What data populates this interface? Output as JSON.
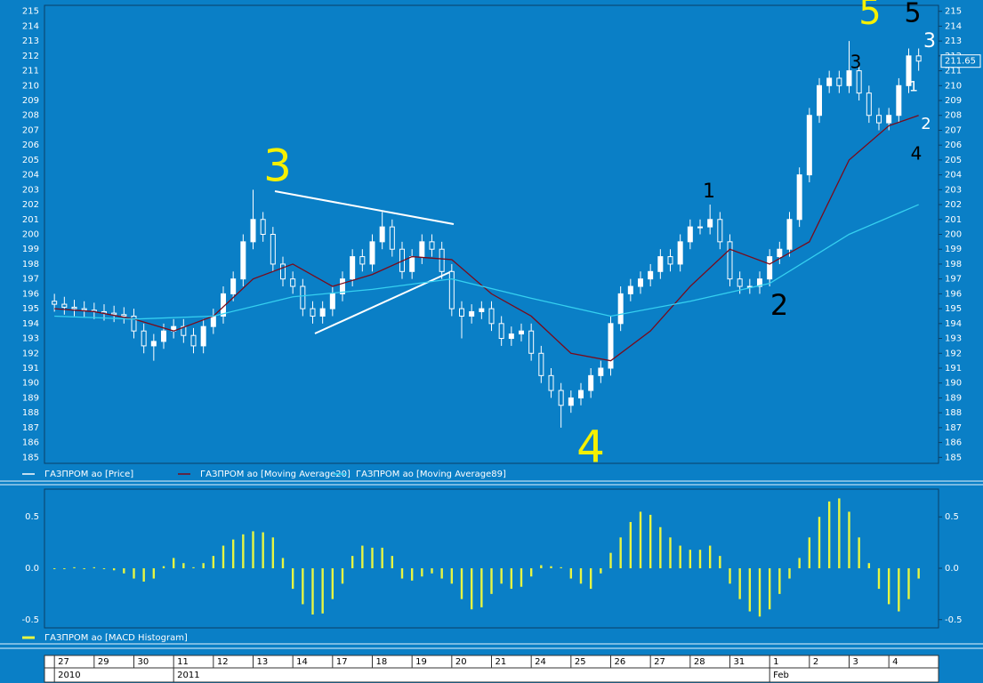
{
  "chart_data": [
    {
      "type": "candlestick",
      "open": [
        195.5,
        195.3,
        195.1,
        195,
        194.9,
        194.8,
        194.7,
        194.6,
        194.5,
        193.5,
        192.5,
        192.8,
        193.5,
        193.8,
        193.2,
        192.5,
        193.8,
        194.5,
        196,
        197,
        199.5,
        201,
        200,
        198,
        197,
        196.5,
        195,
        194.5,
        195,
        196,
        197,
        198.5,
        198,
        199.5,
        200.5,
        199,
        197.5,
        198.5,
        199.5,
        199,
        197.5,
        195,
        194.5,
        194.8,
        195,
        194,
        193,
        193.3,
        193.5,
        192,
        190.5,
        189.5,
        188.5,
        189,
        189.5,
        190.5,
        191,
        194,
        196,
        196.5,
        197,
        197.5,
        198.5,
        198,
        199.5,
        200.5,
        200.5,
        201,
        199.5,
        197,
        196.5,
        196.5,
        197,
        198.5,
        199,
        201,
        204,
        208,
        210,
        210.5,
        210,
        211,
        209.5,
        208,
        207.5,
        208,
        210,
        212
      ],
      "high": [
        196,
        195.8,
        195.6,
        195.5,
        195.4,
        195.3,
        195.2,
        195.1,
        195,
        194,
        193.3,
        194,
        194.3,
        194.3,
        193.7,
        194.3,
        195,
        196.5,
        197.5,
        200,
        203,
        201.5,
        200.5,
        198.5,
        197.5,
        197,
        195.5,
        195.5,
        196.5,
        197.5,
        199,
        199,
        200,
        201.5,
        201,
        199.5,
        199,
        200,
        200,
        199.5,
        198,
        195.5,
        195.3,
        195.5,
        195.5,
        194.5,
        193.8,
        194,
        194,
        192.5,
        191,
        190,
        189.5,
        190,
        191,
        191.5,
        194.5,
        196.5,
        197,
        197.5,
        198,
        199,
        199,
        200,
        201,
        201,
        202,
        201.5,
        200,
        197.5,
        197,
        197.5,
        199,
        199.5,
        201.5,
        204.5,
        208.5,
        210.5,
        211,
        211,
        213,
        211.5,
        210,
        208.5,
        208.5,
        210.5,
        212.5,
        212.5
      ],
      "low": [
        194.8,
        194.6,
        194.5,
        194.4,
        194.3,
        194.2,
        194.1,
        194,
        193,
        192,
        191.5,
        192.3,
        193,
        192.7,
        192,
        192,
        193.3,
        194,
        195.5,
        196.5,
        199,
        199.5,
        197.5,
        196.5,
        196,
        194.5,
        194,
        194,
        194.5,
        195.5,
        196.5,
        197.5,
        197.5,
        199,
        198.5,
        197,
        197,
        198,
        198.5,
        197,
        194.5,
        193,
        194,
        194.3,
        193.5,
        192.5,
        192.5,
        192.8,
        191.5,
        190,
        189,
        187,
        188,
        188.5,
        189,
        190,
        190.5,
        193.5,
        195.5,
        196,
        196.5,
        197,
        197.5,
        197.5,
        199,
        200,
        200,
        199,
        196.5,
        196,
        196,
        196,
        196.5,
        198,
        198.5,
        200.5,
        203.5,
        207.5,
        209.5,
        209.5,
        209.5,
        209,
        207.5,
        207,
        207,
        207.5,
        209.5,
        211
      ],
      "close": [
        195.3,
        195.1,
        195,
        194.9,
        194.8,
        194.7,
        194.6,
        194.5,
        193.5,
        192.5,
        192.8,
        193.5,
        193.8,
        193.2,
        192.5,
        193.8,
        194.5,
        196,
        197,
        199.5,
        201,
        200,
        198,
        197,
        196.5,
        195,
        194.5,
        195,
        196,
        197,
        198.5,
        198,
        199.5,
        200.5,
        199,
        197.5,
        198.5,
        199.5,
        199,
        197.5,
        195,
        194.5,
        194.8,
        195,
        194,
        193,
        193.3,
        193.5,
        192,
        190.5,
        189.5,
        188.5,
        189,
        189.5,
        190.5,
        191,
        194,
        196,
        196.5,
        197,
        197.5,
        198.5,
        198,
        199.5,
        200.5,
        200.5,
        201,
        199.5,
        197,
        196.5,
        196.5,
        197,
        198.5,
        199,
        201,
        204,
        208,
        210,
        210.5,
        210,
        211,
        209.5,
        208,
        207.5,
        208,
        210,
        212,
        211.65
      ],
      "name": "ГАЗПРОМ ao [Price]",
      "color": "#ffffff",
      "series": [
        {
          "name": "ГАЗПРОМ ao [Moving Average20]",
          "color": "#7a0a1a",
          "x": [
            0,
            4,
            8,
            12,
            16,
            20,
            24,
            28,
            32,
            36,
            40,
            44,
            48,
            52,
            56,
            60,
            64,
            68,
            72,
            76,
            80,
            84,
            87
          ],
          "values": [
            195,
            194.8,
            194.3,
            193.5,
            194.5,
            197,
            198,
            196.5,
            197.3,
            198.5,
            198.3,
            196,
            194.5,
            192,
            191.5,
            193.5,
            196.5,
            199,
            198,
            199.5,
            205,
            207.3,
            208
          ]
        },
        {
          "name": "ГАЗПРОМ ao [Moving Average89]",
          "color": "#35d0f0",
          "x": [
            0,
            8,
            16,
            24,
            32,
            40,
            48,
            56,
            64,
            72,
            80,
            87
          ],
          "values": [
            194.5,
            194.3,
            194.5,
            195.8,
            196.3,
            197,
            195.7,
            194.5,
            195.5,
            196.7,
            200,
            202
          ]
        }
      ],
      "xlim": [
        -1,
        89
      ],
      "xticks": [
        {
          "value": 0,
          "label": "27"
        },
        {
          "value": 4,
          "label": "29"
        },
        {
          "value": 8,
          "label": "30"
        },
        {
          "value": 12,
          "label": "11"
        },
        {
          "value": 16,
          "label": "12"
        },
        {
          "value": 20,
          "label": "13"
        },
        {
          "value": 24,
          "label": "14"
        },
        {
          "value": 28,
          "label": "17"
        },
        {
          "value": 32,
          "label": "18"
        },
        {
          "value": 36,
          "label": "19"
        },
        {
          "value": 40,
          "label": "20"
        },
        {
          "value": 44,
          "label": "21"
        },
        {
          "value": 48,
          "label": "24"
        },
        {
          "value": 52,
          "label": "25"
        },
        {
          "value": 56,
          "label": "26"
        },
        {
          "value": 60,
          "label": "27"
        },
        {
          "value": 64,
          "label": "28"
        },
        {
          "value": 68,
          "label": "31"
        },
        {
          "value": 72,
          "label": "1"
        },
        {
          "value": 76,
          "label": "2"
        },
        {
          "value": 80,
          "label": "3"
        },
        {
          "value": 84,
          "label": "4"
        }
      ],
      "year_ticks": [
        {
          "value": 0,
          "label": "2010"
        },
        {
          "value": 12,
          "label": "2011"
        },
        {
          "value": 72,
          "label": "Feb"
        }
      ],
      "ylim": [
        184.6,
        215.4
      ],
      "yticks": [
        185,
        186,
        187,
        188,
        189,
        190,
        191,
        192,
        193,
        194,
        195,
        196,
        197,
        198,
        199,
        200,
        201,
        202,
        203,
        204,
        205,
        206,
        207,
        208,
        209,
        210,
        211,
        212,
        213,
        214,
        215
      ],
      "annotations": [
        {
          "text": "3",
          "color": "#f5f000"
        },
        {
          "text": "4",
          "color": "#f5f000"
        },
        {
          "text": "5",
          "color": "#f5f000"
        },
        {
          "text": "1",
          "color": "#000000"
        },
        {
          "text": "2",
          "color": "#000000"
        },
        {
          "text": "3",
          "color": "#000000"
        },
        {
          "text": "5",
          "color": "#000000"
        },
        {
          "text": "4",
          "color": "#000000"
        },
        {
          "text": "3",
          "color": "#ffffff"
        },
        {
          "text": "2",
          "color": "#ffffff"
        },
        {
          "text": "1",
          "color": "#ffffff"
        }
      ]
    },
    {
      "type": "bar",
      "series": [
        {
          "name": "ГАЗПРОМ ao [MACD Histogram]",
          "color": "#e6f542",
          "values": [
            0,
            0,
            0.01,
            0,
            0.01,
            0,
            -0.02,
            -0.05,
            -0.1,
            -0.13,
            -0.1,
            0.02,
            0.1,
            0.05,
            0.01,
            0.05,
            0.12,
            0.22,
            0.28,
            0.33,
            0.36,
            0.35,
            0.3,
            0.1,
            -0.2,
            -0.35,
            -0.45,
            -0.44,
            -0.3,
            -0.15,
            0.12,
            0.22,
            0.2,
            0.2,
            0.12,
            -0.1,
            -0.12,
            -0.08,
            -0.05,
            -0.1,
            -0.15,
            -0.3,
            -0.4,
            -0.38,
            -0.25,
            -0.15,
            -0.2,
            -0.18,
            -0.08,
            0.03,
            0.02,
            0.01,
            -0.1,
            -0.15,
            -0.2,
            -0.05,
            0.15,
            0.3,
            0.45,
            0.55,
            0.52,
            0.4,
            0.3,
            0.22,
            0.18,
            0.18,
            0.22,
            0.12,
            -0.15,
            -0.3,
            -0.42,
            -0.47,
            -0.4,
            -0.25,
            -0.1,
            0.1,
            0.3,
            0.5,
            0.65,
            0.68,
            0.55,
            0.3,
            0.05,
            -0.2,
            -0.35,
            -0.42,
            -0.3,
            -0.1
          ]
        }
      ],
      "xlim": [
        -1,
        89
      ],
      "ylim": [
        -0.58,
        0.77
      ],
      "yticks": [
        {
          "value": -0.5,
          "label": "-0.5"
        },
        {
          "value": 0,
          "label": "0.0"
        },
        {
          "value": 0.5,
          "label": "0.5"
        }
      ]
    }
  ]
}
